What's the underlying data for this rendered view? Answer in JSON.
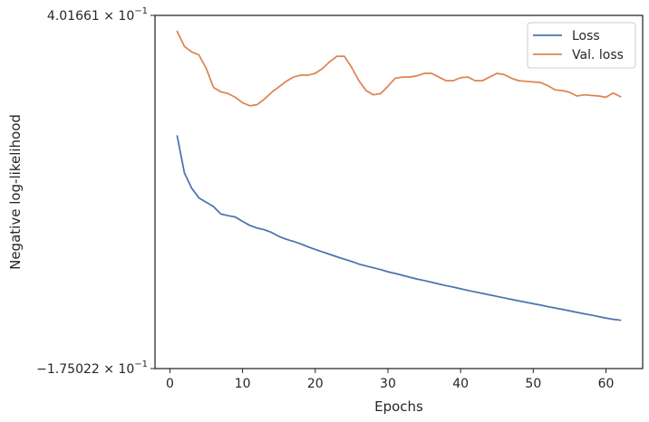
{
  "chart_data": {
    "type": "line",
    "title": "",
    "xlabel": "Epochs",
    "ylabel": "Negative log-likelihood",
    "xlim": [
      -2.05,
      65.05
    ],
    "ylim": [
      -0.175022,
      0.401661
    ],
    "y_scale": "symlog",
    "x_ticks": [
      0,
      10,
      20,
      30,
      40,
      50,
      60
    ],
    "x_tick_labels": [
      "0",
      "10",
      "20",
      "30",
      "40",
      "50",
      "60"
    ],
    "y_tick_labels": [
      {
        "mantissa": "4.01661",
        "base": "10",
        "exponent": "−1"
      },
      {
        "mantissa": "−1.75022",
        "base": "10",
        "exponent": "−1"
      }
    ],
    "grid": false,
    "legend_position": "top-right",
    "x": [
      1,
      2,
      3,
      4,
      5,
      6,
      7,
      8,
      9,
      10,
      11,
      12,
      13,
      14,
      15,
      16,
      17,
      18,
      19,
      20,
      21,
      22,
      23,
      24,
      25,
      26,
      27,
      28,
      29,
      30,
      31,
      32,
      33,
      34,
      35,
      36,
      37,
      38,
      39,
      40,
      41,
      42,
      43,
      44,
      45,
      46,
      47,
      48,
      49,
      50,
      51,
      52,
      53,
      54,
      55,
      56,
      57,
      58,
      59,
      60,
      61,
      62
    ],
    "series": [
      {
        "name": "Loss",
        "color": "#4c72b0",
        "values": [
          0.2048,
          0.1444,
          0.1195,
          0.1036,
          0.0965,
          0.0895,
          0.0775,
          0.0746,
          0.0725,
          0.0652,
          0.0587,
          0.0544,
          0.0517,
          0.0472,
          0.0408,
          0.0361,
          0.0326,
          0.0286,
          0.0237,
          0.0195,
          0.0155,
          0.0115,
          0.0074,
          0.0036,
          -0.0001,
          -0.0044,
          -0.0075,
          -0.0104,
          -0.0134,
          -0.017,
          -0.0198,
          -0.0227,
          -0.0259,
          -0.0288,
          -0.0313,
          -0.034,
          -0.037,
          -0.0396,
          -0.042,
          -0.0447,
          -0.0474,
          -0.0498,
          -0.0523,
          -0.0547,
          -0.0572,
          -0.0596,
          -0.0621,
          -0.0645,
          -0.0667,
          -0.0691,
          -0.0713,
          -0.0738,
          -0.0761,
          -0.0784,
          -0.0807,
          -0.0832,
          -0.0855,
          -0.0877,
          -0.0902,
          -0.0926,
          -0.0946,
          -0.096
        ]
      },
      {
        "name": "Val. loss",
        "color": "#dd8452",
        "values": [
          0.3755,
          0.351,
          0.342,
          0.337,
          0.315,
          0.284,
          0.277,
          0.274,
          0.268,
          0.259,
          0.254,
          0.256,
          0.265,
          0.276,
          0.285,
          0.294,
          0.301,
          0.304,
          0.304,
          0.307,
          0.315,
          0.326,
          0.335,
          0.335,
          0.317,
          0.295,
          0.279,
          0.272,
          0.274,
          0.286,
          0.299,
          0.301,
          0.301,
          0.303,
          0.307,
          0.307,
          0.301,
          0.295,
          0.295,
          0.3,
          0.301,
          0.295,
          0.295,
          0.301,
          0.307,
          0.305,
          0.299,
          0.295,
          0.294,
          0.293,
          0.292,
          0.287,
          0.28,
          0.279,
          0.276,
          0.27,
          0.272,
          0.271,
          0.27,
          0.268,
          0.275,
          0.269
        ]
      }
    ]
  }
}
